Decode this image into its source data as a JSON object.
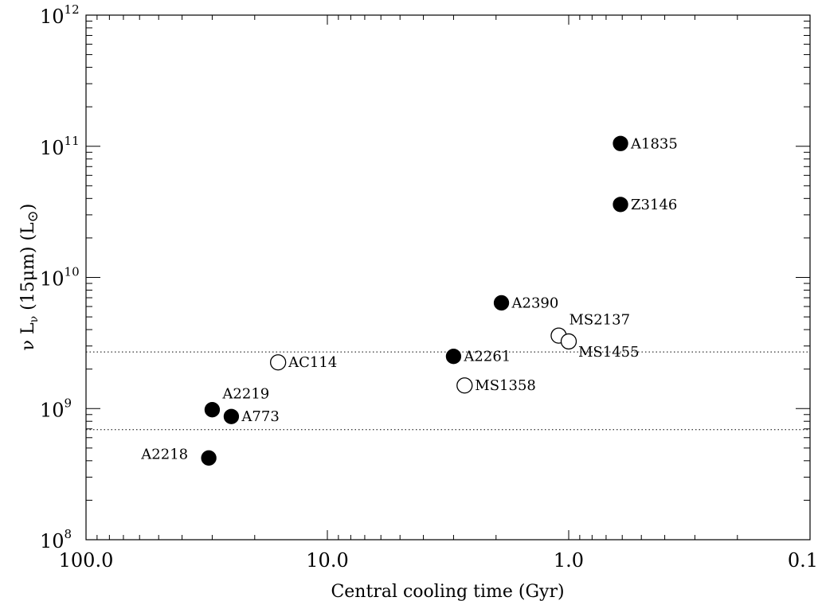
{
  "chart_data": {
    "type": "scatter",
    "xlabel": "Central cooling time (Gyr)",
    "ylabel_parts": {
      "nu": "ν",
      "L": "L",
      "sub": "ν",
      "mid": "(15μm) (L",
      "sun": "⊙",
      "end": ")"
    },
    "x_scale": "log",
    "y_scale": "log",
    "x_reversed": true,
    "xlim": [
      100.0,
      0.1
    ],
    "ylim": [
      100000000.0,
      1000000000000.0
    ],
    "x_ticks": [
      {
        "value": 100,
        "label": "100.0"
      },
      {
        "value": 10,
        "label": "10.0"
      },
      {
        "value": 1,
        "label": "1.0"
      },
      {
        "value": 0.1,
        "label": "0.1"
      }
    ],
    "y_ticks": [
      {
        "value": 100000000.0,
        "base": "10",
        "exp": "8"
      },
      {
        "value": 1000000000.0,
        "base": "10",
        "exp": "9"
      },
      {
        "value": 10000000000.0,
        "base": "10",
        "exp": "10"
      },
      {
        "value": 100000000000.0,
        "base": "10",
        "exp": "11"
      },
      {
        "value": 1000000000000.0,
        "base": "10",
        "exp": "12"
      }
    ],
    "hlines": [
      2700000000.0,
      690000000.0
    ],
    "points": [
      {
        "label": "A1835",
        "x": 0.61,
        "y": 105000000000.0,
        "filled": true,
        "label_pos": "right"
      },
      {
        "label": "Z3146",
        "x": 0.61,
        "y": 36000000000.0,
        "filled": true,
        "label_pos": "right"
      },
      {
        "label": "A2390",
        "x": 1.9,
        "y": 6400000000.0,
        "filled": true,
        "label_pos": "right"
      },
      {
        "label": "MS2137",
        "x": 1.1,
        "y": 3600000000.0,
        "filled": false,
        "label_pos": "upper-right"
      },
      {
        "label": "MS1455",
        "x": 1.0,
        "y": 3250000000.0,
        "filled": false,
        "label_pos": "lower-right"
      },
      {
        "label": "A2261",
        "x": 3.0,
        "y": 2500000000.0,
        "filled": true,
        "label_pos": "right"
      },
      {
        "label": "AC114",
        "x": 16.0,
        "y": 2250000000.0,
        "filled": false,
        "label_pos": "right"
      },
      {
        "label": "MS1358",
        "x": 2.7,
        "y": 1500000000.0,
        "filled": false,
        "label_pos": "right"
      },
      {
        "label": "A2219",
        "x": 30.0,
        "y": 980000000.0,
        "filled": true,
        "label_pos": "upper-right"
      },
      {
        "label": "A773",
        "x": 25.0,
        "y": 870000000.0,
        "filled": true,
        "label_pos": "right"
      },
      {
        "label": "A2218",
        "x": 31.0,
        "y": 420000000.0,
        "filled": true,
        "label_pos": "left"
      }
    ]
  }
}
